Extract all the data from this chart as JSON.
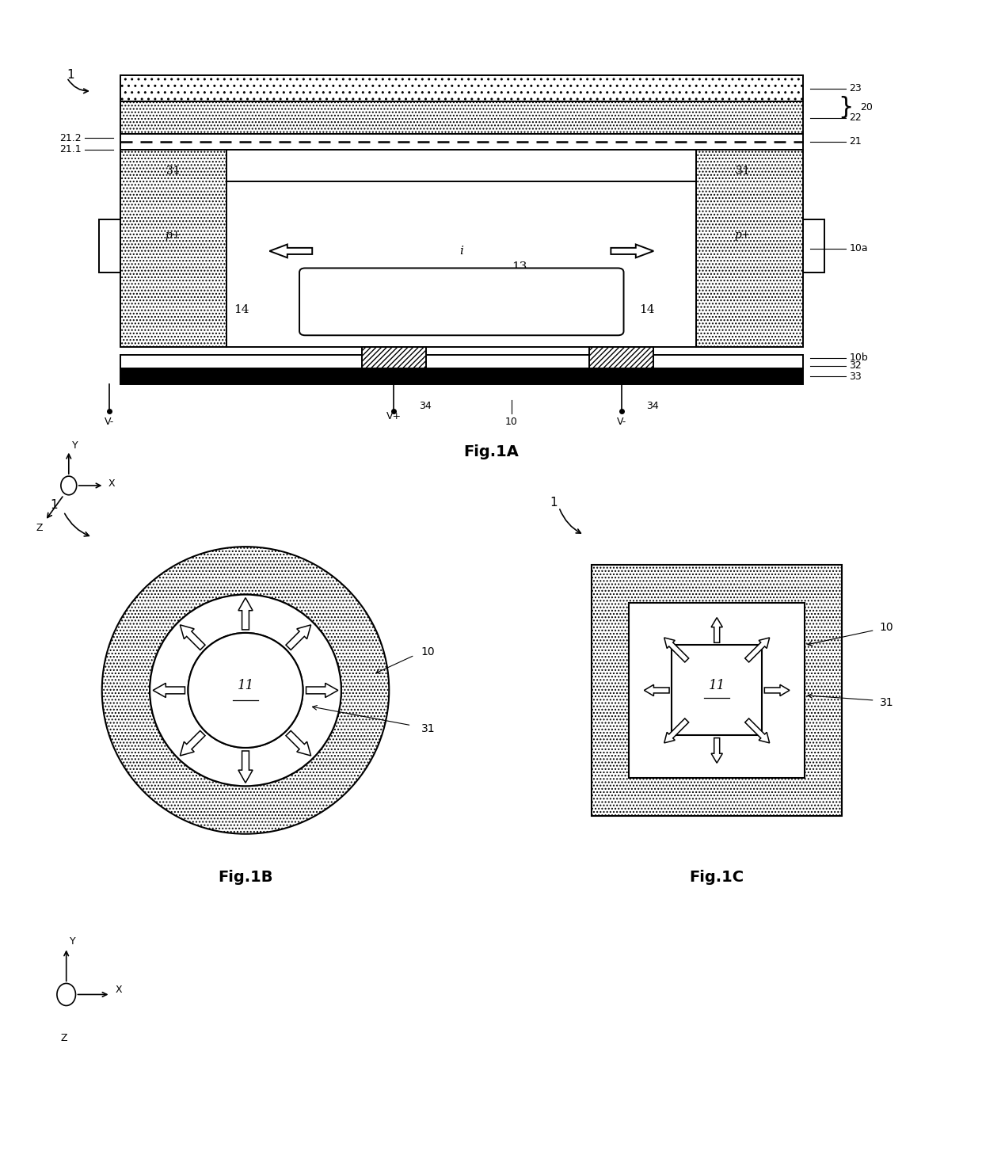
{
  "bg_color": "#ffffff",
  "fig_width": 12.4,
  "fig_height": 14.77,
  "fig1a_title": "Fig.1A",
  "fig1b_title": "Fig.1B",
  "fig1c_title": "Fig.1C",
  "hatch_dot": "..",
  "lw": 1.4
}
